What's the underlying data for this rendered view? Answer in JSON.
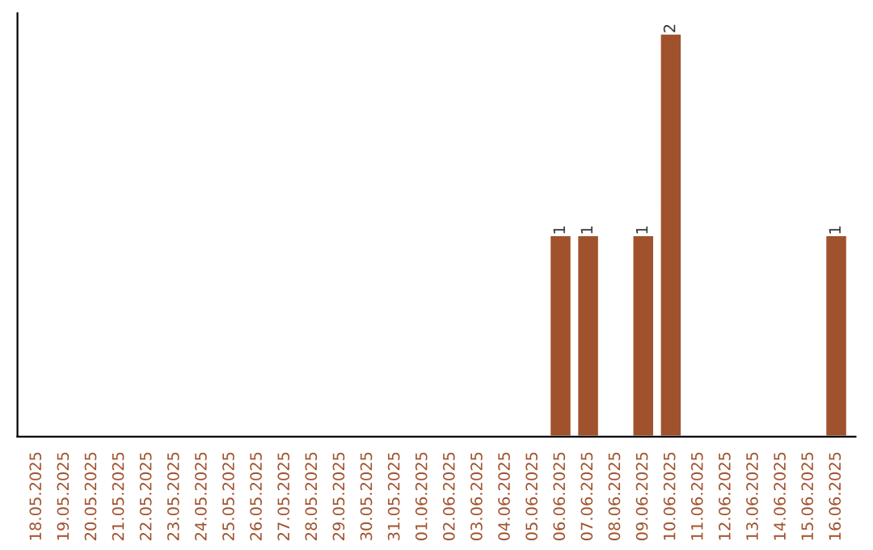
{
  "chart_data": {
    "type": "bar",
    "categories": [
      "18.05.2025",
      "19.05.2025",
      "20.05.2025",
      "21.05.2025",
      "22.05.2025",
      "23.05.2025",
      "24.05.2025",
      "25.05.2025",
      "26.05.2025",
      "27.05.2025",
      "28.05.2025",
      "29.05.2025",
      "30.05.2025",
      "31.05.2025",
      "01.06.2025",
      "02.06.2025",
      "03.06.2025",
      "04.06.2025",
      "05.06.2025",
      "06.06.2025",
      "07.06.2025",
      "08.06.2025",
      "09.06.2025",
      "10.06.2025",
      "11.06.2025",
      "12.06.2025",
      "13.06.2025",
      "14.06.2025",
      "15.06.2025",
      "16.06.2025"
    ],
    "values": [
      null,
      null,
      null,
      null,
      null,
      null,
      null,
      null,
      null,
      null,
      null,
      null,
      null,
      null,
      null,
      null,
      null,
      null,
      null,
      1,
      1,
      null,
      1,
      2,
      null,
      null,
      null,
      null,
      null,
      1
    ],
    "value_labels": [
      null,
      null,
      null,
      null,
      null,
      null,
      null,
      null,
      null,
      null,
      null,
      null,
      null,
      null,
      null,
      null,
      null,
      null,
      null,
      "1",
      "1",
      null,
      "1",
      "2",
      null,
      null,
      null,
      null,
      null,
      "1"
    ],
    "color": "#a0522d",
    "ylim": [
      0,
      2.1
    ],
    "tick_labels": "x",
    "grid": false,
    "legend": false
  }
}
